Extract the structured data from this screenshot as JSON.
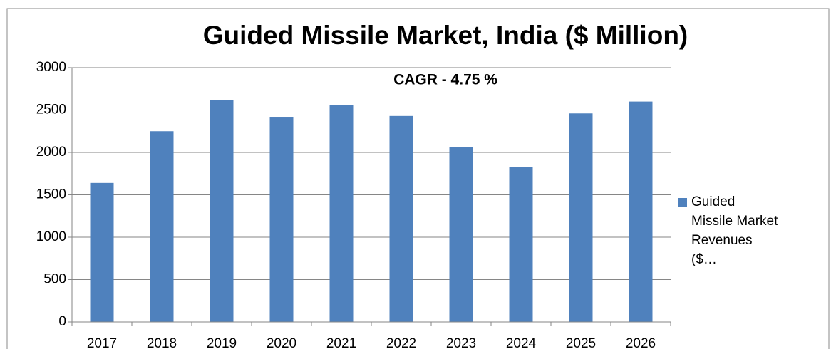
{
  "chart_data": {
    "type": "bar",
    "title": "Guided Missile Market, India ($ Million)",
    "subtitle": "CAGR - 4.75 %",
    "categories": [
      "2017",
      "2018",
      "2019",
      "2020",
      "2021",
      "2022",
      "2023",
      "2024",
      "2025",
      "2026"
    ],
    "series": [
      {
        "name": "Guided Missile Market Revenues ($…",
        "color": "#4f81bd",
        "values": [
          1640,
          2250,
          2620,
          2420,
          2560,
          2430,
          2060,
          1830,
          2460,
          2600
        ]
      }
    ],
    "ylim": [
      0,
      3000
    ],
    "yticks": [
      0,
      500,
      1000,
      1500,
      2000,
      2500,
      3000
    ],
    "grid": true,
    "legend": "right"
  }
}
